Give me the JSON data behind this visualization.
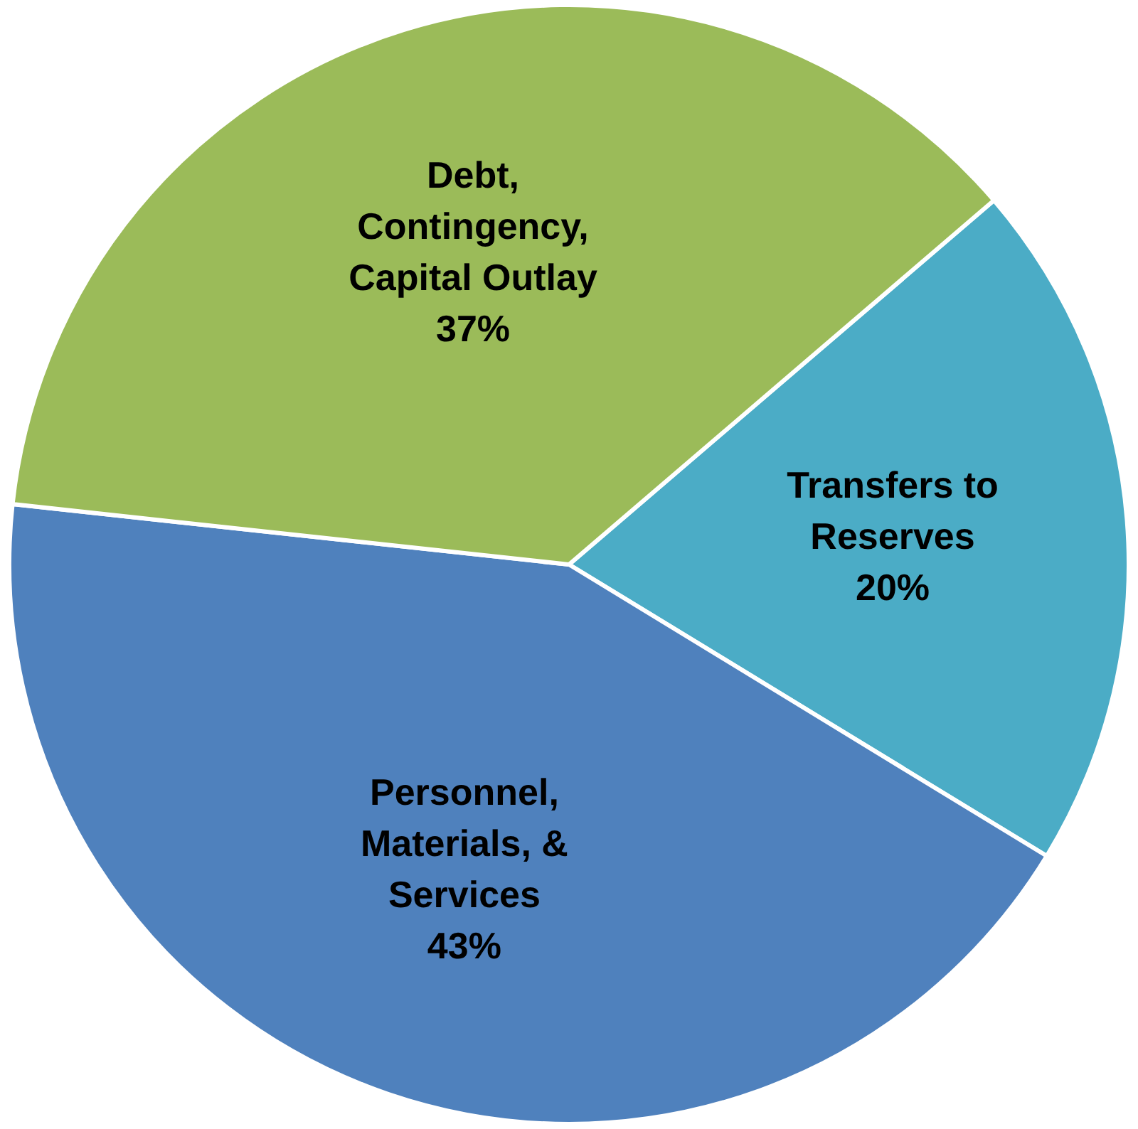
{
  "chart_data": {
    "type": "pie",
    "categories": [
      "Transfers to Reserves",
      "Personnel, Materials, & Services",
      "Debt, Contingency, Capital Outlay"
    ],
    "values": [
      20,
      43,
      37
    ],
    "colors": [
      "#4bacc6",
      "#4f81bd",
      "#9bbb59"
    ],
    "value_labels": [
      "20%",
      "43%",
      "37%"
    ],
    "legend": false
  }
}
